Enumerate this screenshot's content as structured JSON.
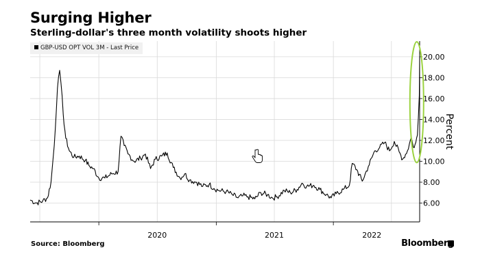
{
  "header": {
    "title": "Surging Higher",
    "subtitle": "Sterling-dollar's three month volatility shoots higher"
  },
  "footer": {
    "source": "Source: Bloomberg",
    "brand": "Bloomberg"
  },
  "colors": {
    "line": "#000000",
    "grid": "#d9d9d9",
    "highlight": "#9bd23f",
    "legend_bg": "#f1f1f1"
  },
  "icons": {
    "cursor": "hand-pointer-icon",
    "brand_mark": "bloomberg-logo-mark-icon"
  },
  "chart_data": {
    "type": "line",
    "legend": "GBP-USD OPT VOL 3M - Last Price",
    "legend_placement": "top-left",
    "ylabel": "Percent",
    "xlabel": "",
    "yaxis_side": "right",
    "ylim": [
      4.2,
      21.5
    ],
    "xlim": [
      "2019-06-01",
      "2022-09-27"
    ],
    "yticks": [
      "6.00",
      "8.00",
      "10.00",
      "12.00",
      "14.00",
      "16.00",
      "18.00",
      "20.00"
    ],
    "xticks": [
      "2020",
      "2021",
      "2022"
    ],
    "grid": true,
    "series": [
      {
        "name": "GBP-USD OPT VOL 3M - Last Price",
        "x": [
          "2019-06-01",
          "2019-06-20",
          "2019-07-10",
          "2019-07-25",
          "2019-08-05",
          "2019-08-15",
          "2019-08-25",
          "2019-09-01",
          "2019-09-05",
          "2019-09-12",
          "2019-09-20",
          "2019-10-01",
          "2019-10-15",
          "2019-11-01",
          "2019-11-20",
          "2019-12-01",
          "2019-12-15",
          "2020-01-01",
          "2020-01-20",
          "2020-02-10",
          "2020-03-01",
          "2020-03-10",
          "2020-03-20",
          "2020-04-01",
          "2020-04-20",
          "2020-05-10",
          "2020-05-25",
          "2020-06-10",
          "2020-06-25",
          "2020-07-15",
          "2020-08-01",
          "2020-08-20",
          "2020-09-10",
          "2020-09-25",
          "2020-10-10",
          "2020-11-01",
          "2020-11-20",
          "2020-12-10",
          "2020-12-25",
          "2021-01-10",
          "2021-02-01",
          "2021-02-20",
          "2021-03-10",
          "2021-03-25",
          "2021-04-10",
          "2021-05-01",
          "2021-05-20",
          "2021-06-10",
          "2021-06-25",
          "2021-07-10",
          "2021-08-01",
          "2021-08-20",
          "2021-09-10",
          "2021-09-25",
          "2021-10-10",
          "2021-11-01",
          "2021-11-20",
          "2021-12-10",
          "2021-12-25",
          "2022-01-10",
          "2022-02-01",
          "2022-02-20",
          "2022-03-01",
          "2022-03-15",
          "2022-04-01",
          "2022-04-20",
          "2022-05-10",
          "2022-05-25",
          "2022-06-10",
          "2022-06-25",
          "2022-07-10",
          "2022-07-25",
          "2022-08-05",
          "2022-08-20",
          "2022-09-01",
          "2022-09-05",
          "2022-09-10",
          "2022-09-15",
          "2022-09-20",
          "2022-09-23",
          "2022-09-26",
          "2022-09-27"
        ],
        "values": [
          6.3,
          6.0,
          6.2,
          6.5,
          8.0,
          11.5,
          17.0,
          18.7,
          17.5,
          14.5,
          12.2,
          11.0,
          10.4,
          10.5,
          10.1,
          9.6,
          9.3,
          8.4,
          8.4,
          8.8,
          9.0,
          12.4,
          11.5,
          10.7,
          10.0,
          10.3,
          10.7,
          9.3,
          10.2,
          10.5,
          10.8,
          9.4,
          8.4,
          8.8,
          8.2,
          8.0,
          7.6,
          7.8,
          7.4,
          7.2,
          7.1,
          6.8,
          6.5,
          6.7,
          6.6,
          6.4,
          7.0,
          6.8,
          6.5,
          6.6,
          7.2,
          7.0,
          7.3,
          7.9,
          7.6,
          7.7,
          7.3,
          6.8,
          6.5,
          6.9,
          7.3,
          7.7,
          9.8,
          9.2,
          8.1,
          9.5,
          11.0,
          11.3,
          11.8,
          11.0,
          11.9,
          10.9,
          10.2,
          11.0,
          12.3,
          11.7,
          11.3,
          11.8,
          12.5,
          14.2,
          16.3,
          20.0
        ]
      }
    ],
    "annotations": [
      "green ellipse highlighting the September 2022 spike"
    ]
  }
}
